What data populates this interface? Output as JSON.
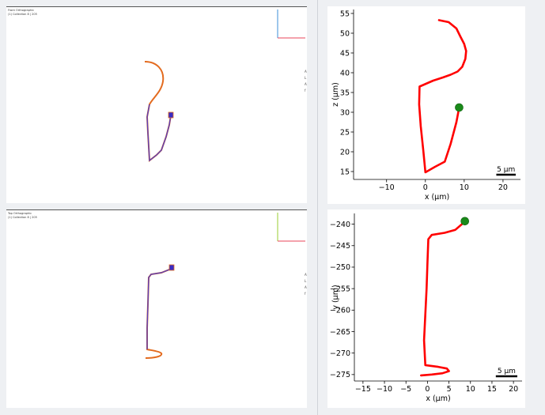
{
  "viewports": {
    "front": {
      "title": "Front Orthographic",
      "subtitle": "(1) Collection 8 | 205",
      "axis_gizmo": {
        "vertical_color": "#3b8fd9",
        "horizontal_color": "#e8455a"
      },
      "side_letters": [
        "A",
        "L",
        "A",
        "f"
      ]
    },
    "top": {
      "title": "Top Orthographic",
      "subtitle": "(1) Collection 8 | 205",
      "axis_gizmo": {
        "vertical_color": "#9acd32",
        "horizontal_color": "#e8455a"
      },
      "side_letters": [
        "A",
        "L",
        "A",
        "f"
      ]
    },
    "colors": {
      "path_outer": "#e36b1f",
      "path_inner": "#5b3fb8",
      "marker": "#3a2cc4"
    }
  },
  "chart_data": [
    {
      "type": "line",
      "name": "xz-projection",
      "xlabel": "x (µm)",
      "ylabel": "z (µm)",
      "xlim": [
        -18.5,
        24.5
      ],
      "ylim": [
        13,
        56
      ],
      "xticks": [
        -10,
        0,
        10,
        20
      ],
      "yticks": [
        15,
        20,
        25,
        30,
        35,
        40,
        45,
        50,
        55
      ],
      "grid": false,
      "x": [
        3.5,
        6,
        8,
        9,
        10,
        10.5,
        10.3,
        9.5,
        8.3,
        6.5,
        4.5,
        2,
        -1.5,
        -1.6,
        -1.2,
        -0.5,
        0,
        2.5,
        5,
        6.5,
        8,
        8.7
      ],
      "y": [
        53.3,
        52.8,
        51.2,
        49.2,
        47.3,
        45.5,
        43.5,
        41.5,
        40.3,
        39.5,
        38.8,
        38,
        36.5,
        32,
        26.5,
        20,
        14.8,
        16.2,
        17.5,
        22,
        27.5,
        31.2
      ],
      "line_color": "#ff0000",
      "endpoint": {
        "x": 8.7,
        "y": 31.2,
        "color": "#1a8a1a"
      },
      "scalebar": {
        "label": "5 µm",
        "length": 5
      }
    },
    {
      "type": "line",
      "name": "xy-projection",
      "xlabel": "x (µm)",
      "ylabel": "y (µm)",
      "xlim": [
        -17,
        22
      ],
      "ylim": [
        -276.5,
        -237.5
      ],
      "xticks": [
        -15,
        -10,
        -5,
        0,
        5,
        10,
        15,
        20
      ],
      "yticks": [
        -240,
        -245,
        -250,
        -255,
        -260,
        -265,
        -270,
        -275
      ],
      "grid": false,
      "x": [
        -1.5,
        1,
        3.5,
        5,
        4.5,
        2.5,
        -0.5,
        -0.8,
        -0.5,
        -0.2,
        0,
        0.2,
        1,
        4,
        6.5,
        8,
        8.7
      ],
      "y": [
        -275.2,
        -275.0,
        -274.7,
        -274.2,
        -273.6,
        -273.2,
        -272.8,
        -267,
        -261,
        -255,
        -249,
        -243.5,
        -242.5,
        -242,
        -241.3,
        -240,
        -239.3
      ],
      "line_color": "#ff0000",
      "endpoint": {
        "x": 8.7,
        "y": -239.3,
        "color": "#1a8a1a"
      },
      "scalebar": {
        "label": "5 µm",
        "length": 5
      }
    }
  ]
}
